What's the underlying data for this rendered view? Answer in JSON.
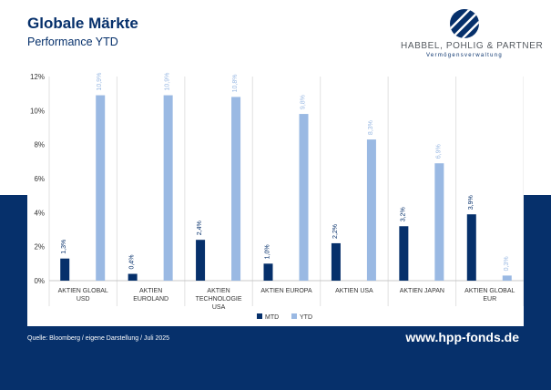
{
  "header": {
    "title": "Globale Märkte",
    "subtitle": "Performance YTD"
  },
  "logo": {
    "name": "HABBEL, POHLIG & PARTNER",
    "tagline": "Vermögensverwaltung"
  },
  "footer": {
    "source": "Quelle: Bloomberg / eigene Darstellung / Juli 2025",
    "website": "www.hpp-fonds.de"
  },
  "colors": {
    "mtd": "#06306b",
    "ytd": "#9ab9e3",
    "background_band": "#06306b"
  },
  "chart_data": {
    "type": "bar",
    "categories": [
      [
        "AKTIEN GLOBAL",
        "USD"
      ],
      [
        "AKTIEN",
        "EUROLAND"
      ],
      [
        "AKTIEN",
        "TECHNOLOGIE",
        "USA"
      ],
      [
        "AKTIEN EUROPA"
      ],
      [
        "AKTIEN USA"
      ],
      [
        "AKTIEN JAPAN"
      ],
      [
        "AKTIEN GLOBAL",
        "EUR"
      ]
    ],
    "series": [
      {
        "name": "MTD",
        "values": [
          1.3,
          0.4,
          2.4,
          1.0,
          2.2,
          3.2,
          3.9
        ],
        "labels": [
          "1,3%",
          "0,4%",
          "2,4%",
          "1,0%",
          "2,2%",
          "3,2%",
          "3,9%"
        ]
      },
      {
        "name": "YTD",
        "values": [
          10.9,
          10.9,
          10.8,
          9.8,
          8.3,
          6.9,
          0.3
        ],
        "labels": [
          "10,9%",
          "10,9%",
          "10,8%",
          "9,8%",
          "8,3%",
          "6,9%",
          "0,3%"
        ]
      }
    ],
    "ylim": [
      0,
      12
    ],
    "yticks": [
      0,
      2,
      4,
      6,
      8,
      10,
      12
    ],
    "ytick_labels": [
      "0%",
      "2%",
      "4%",
      "6%",
      "8%",
      "10%",
      "12%"
    ],
    "grid": false,
    "category_separators": true,
    "legend": "bottom-center",
    "xlabel": "",
    "ylabel": ""
  }
}
